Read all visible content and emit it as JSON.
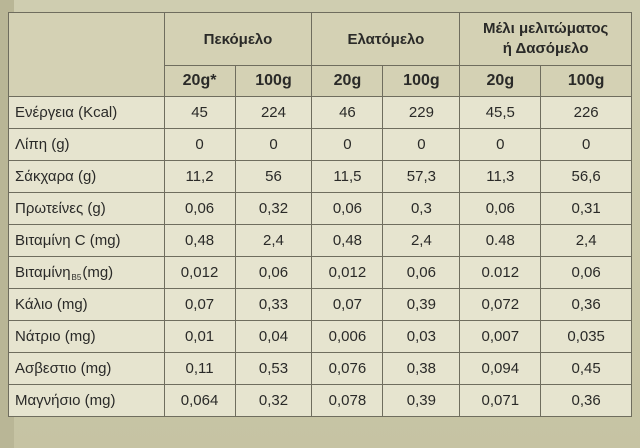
{
  "table": {
    "groups": [
      {
        "label": "Πεκόμελο"
      },
      {
        "label": "Ελατόμελο"
      },
      {
        "label_line1": "Μέλι μελιτώματος",
        "label_line2": "ή Δασόμελο"
      }
    ],
    "units": [
      "20g*",
      "100g",
      "20g",
      "100g",
      "20g",
      "100g"
    ],
    "rows": [
      {
        "label": "Ενέργεια (Kcal)",
        "values": [
          "45",
          "224",
          "46",
          "229",
          "45,5",
          "226"
        ]
      },
      {
        "label": "Λίπη (g)",
        "values": [
          "0",
          "0",
          "0",
          "0",
          "0",
          "0"
        ]
      },
      {
        "label": "Σάκχαρα (g)",
        "values": [
          "11,2",
          "56",
          "11,5",
          "57,3",
          "11,3",
          "56,6"
        ]
      },
      {
        "label": "Πρωτείνες (g)",
        "values": [
          "0,06",
          "0,32",
          "0,06",
          "0,3",
          "0,06",
          "0,31"
        ]
      },
      {
        "label": "Βιταμίνη C (mg)",
        "values": [
          "0,48",
          "2,4",
          "0,48",
          "2,4",
          "0.48",
          "2,4"
        ]
      },
      {
        "label_main": "Βιταμίνη",
        "label_sub": "B5",
        "label_unit": "(mg)",
        "values": [
          "0,012",
          "0,06",
          "0,012",
          "0,06",
          "0.012",
          "0,06"
        ]
      },
      {
        "label": "Κάλιο (mg)",
        "values": [
          "0,07",
          "0,33",
          "0,07",
          "0,39",
          "0,072",
          "0,36"
        ]
      },
      {
        "label": "Νάτριο (mg)",
        "values": [
          "0,01",
          "0,04",
          "0,006",
          "0,03",
          "0,007",
          "0,035"
        ]
      },
      {
        "label": "Ασβεστιο (mg)",
        "values": [
          "0,11",
          "0,53",
          "0,076",
          "0,38",
          "0,094",
          "0,45"
        ]
      },
      {
        "label": "Μαγνήσιο (mg)",
        "values": [
          "0,064",
          "0,32",
          "0,078",
          "0,39",
          "0,071",
          "0,36"
        ]
      }
    ]
  }
}
